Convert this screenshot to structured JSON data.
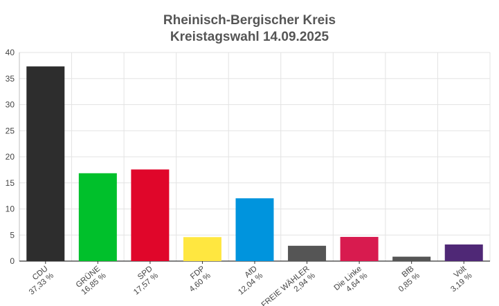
{
  "chart_data": {
    "type": "bar",
    "title": "Rheinisch-Bergischer Kreis",
    "subtitle": "Kreistagswahl 14.09.2025",
    "xlabel": "",
    "ylabel": "",
    "ylim": [
      0,
      40
    ],
    "yticks": [
      "0",
      "5",
      "10",
      "15",
      "20",
      "25",
      "30",
      "35",
      "40"
    ],
    "grid": true,
    "categories": [
      "CDU",
      "GRÜNE",
      "SPD",
      "FDP",
      "AfD",
      "FREIE WÄHLER",
      "Die Linke",
      "BfB",
      "Volt"
    ],
    "values": [
      37.33,
      16.85,
      17.57,
      4.6,
      12.04,
      2.94,
      4.64,
      0.85,
      3.19
    ],
    "value_labels": [
      "37,33 %",
      "16,85 %",
      "17,57 %",
      "4,60 %",
      "12,04 %",
      "2,94 %",
      "4,64 %",
      "0,85 %",
      "3,19 %"
    ],
    "colors": [
      "#2d2d2d",
      "#00c02b",
      "#e0062a",
      "#ffe740",
      "#0094dd",
      "#555555",
      "#d81b4f",
      "#555555",
      "#4f2876"
    ]
  }
}
